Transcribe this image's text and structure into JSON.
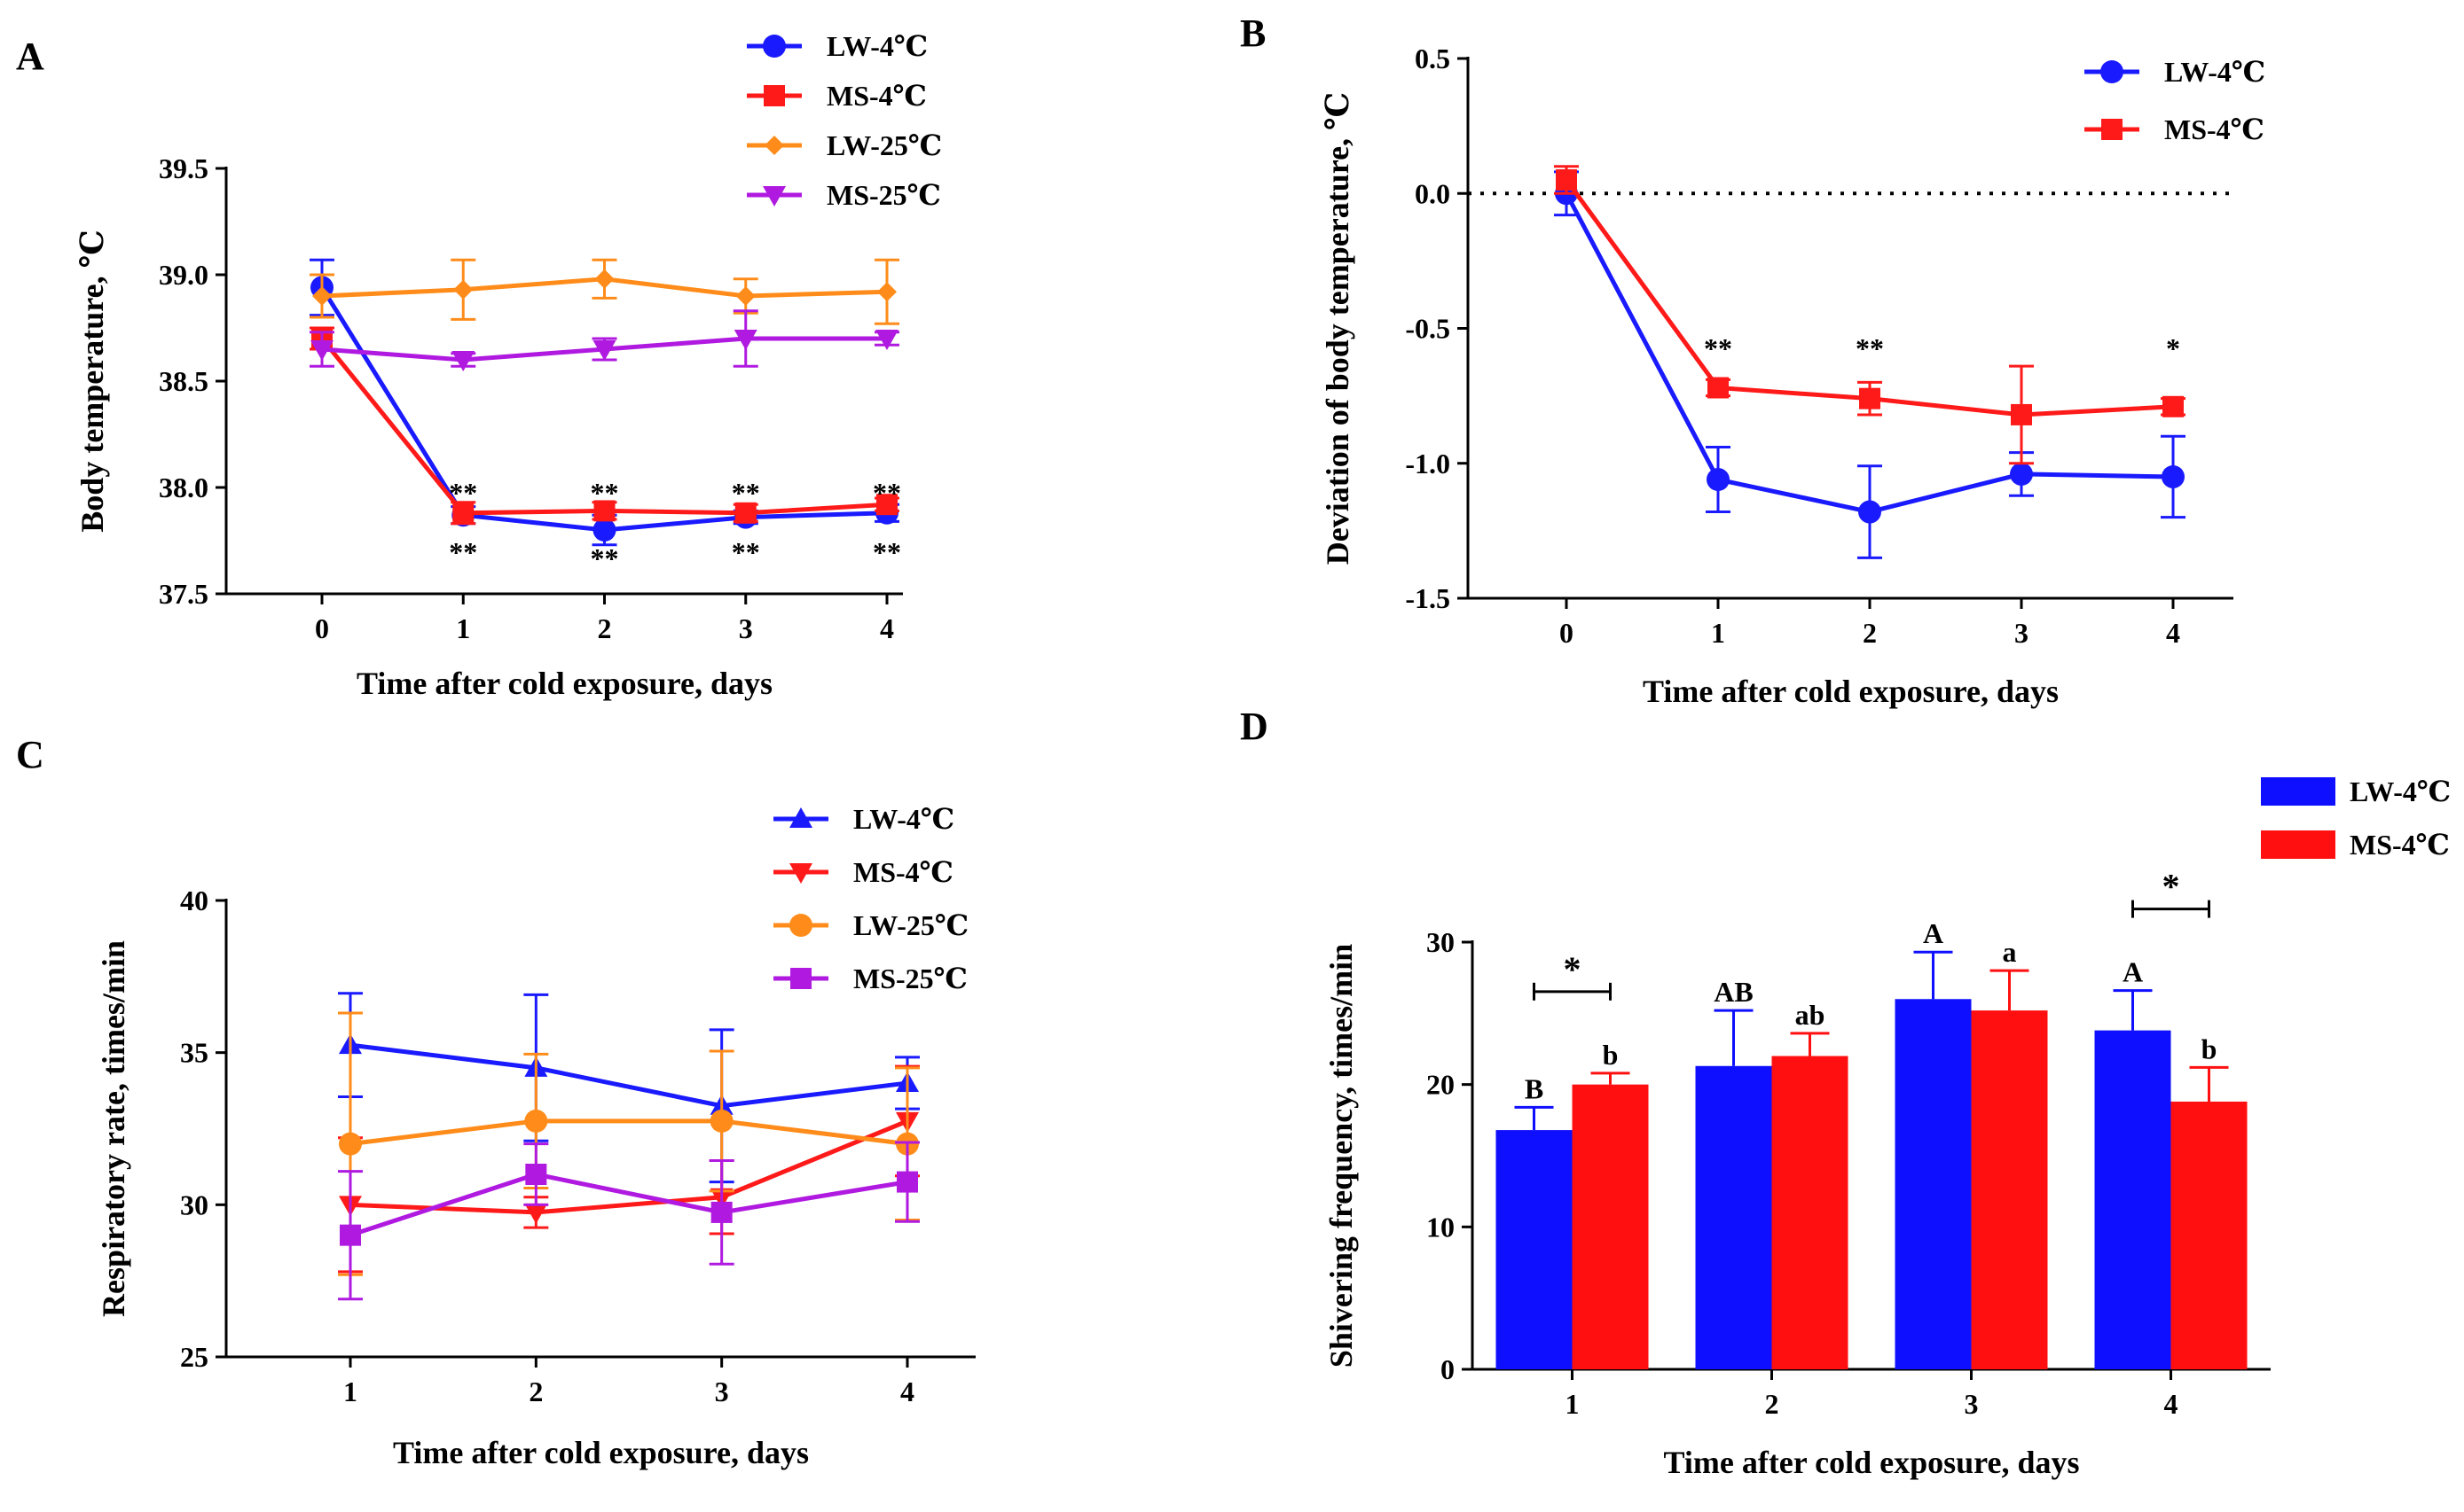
{
  "figure_panels": [
    "A",
    "B",
    "C",
    "D"
  ],
  "chart_data": [
    {
      "panel": "A",
      "type": "line",
      "xlabel": "Time after cold exposure, days",
      "ylabel": "Body temperature, ℃",
      "x": [
        0,
        1,
        2,
        3,
        4
      ],
      "xticks": [
        "0",
        "1",
        "2",
        "3",
        "4"
      ],
      "ylim": [
        37.5,
        39.5
      ],
      "yticks": [
        "37.5",
        "38.0",
        "38.5",
        "39.0",
        "39.5"
      ],
      "legend_position": "top-right",
      "series": [
        {
          "name": "LW-4℃",
          "color": "#1a1aff",
          "marker": "circle",
          "values": [
            38.94,
            37.87,
            37.8,
            37.86,
            37.88
          ],
          "errors": [
            0.13,
            0.04,
            0.07,
            0.03,
            0.04
          ]
        },
        {
          "name": "MS-4℃",
          "color": "#ff1a1a",
          "marker": "square",
          "values": [
            38.7,
            37.88,
            37.89,
            37.88,
            37.92
          ],
          "errors": [
            0.05,
            0.05,
            0.04,
            0.04,
            0.03
          ]
        },
        {
          "name": "LW-25℃",
          "color": "#ff8c1a",
          "marker": "diamond",
          "values": [
            38.9,
            38.93,
            38.98,
            38.9,
            38.92
          ],
          "errors": [
            0.1,
            0.14,
            0.09,
            0.08,
            0.15
          ]
        },
        {
          "name": "MS-25℃",
          "color": "#b01ae0",
          "marker": "triangle-down",
          "values": [
            38.65,
            38.6,
            38.65,
            38.7,
            38.7
          ],
          "errors": [
            0.08,
            0.03,
            0.05,
            0.13,
            0.03
          ]
        }
      ],
      "annotations": [
        {
          "x": 1,
          "y": 37.98,
          "text": "**"
        },
        {
          "x": 2,
          "y": 37.98,
          "text": "**"
        },
        {
          "x": 3,
          "y": 37.98,
          "text": "**"
        },
        {
          "x": 4,
          "y": 37.98,
          "text": "**"
        },
        {
          "x": 1,
          "y": 37.7,
          "text": "**"
        },
        {
          "x": 2,
          "y": 37.67,
          "text": "**"
        },
        {
          "x": 3,
          "y": 37.7,
          "text": "**"
        },
        {
          "x": 4,
          "y": 37.7,
          "text": "**"
        }
      ]
    },
    {
      "panel": "B",
      "type": "line",
      "xlabel": "Time after cold exposure, days",
      "ylabel": "Deviation of body temperature, ℃",
      "x": [
        0,
        1,
        2,
        3,
        4
      ],
      "xticks": [
        "0",
        "1",
        "2",
        "3",
        "4"
      ],
      "ylim": [
        -1.5,
        0.5
      ],
      "yticks": [
        "-1.5",
        "-1.0",
        "-0.5",
        "0.0",
        "0.5"
      ],
      "reference_line_y": 0,
      "legend_position": "top-right",
      "series": [
        {
          "name": "LW-4℃",
          "color": "#1a1aff",
          "marker": "circle",
          "values": [
            0.0,
            -1.06,
            -1.18,
            -1.04,
            -1.05
          ],
          "errors": [
            0.08,
            0.12,
            0.17,
            0.08,
            0.15
          ]
        },
        {
          "name": "MS-4℃",
          "color": "#ff1a1a",
          "marker": "square",
          "values": [
            0.05,
            -0.72,
            -0.76,
            -0.82,
            -0.79
          ],
          "errors": [
            0.05,
            0.03,
            0.06,
            0.18,
            0.03
          ]
        }
      ],
      "annotations": [
        {
          "x": 1,
          "y": -0.57,
          "text": "**"
        },
        {
          "x": 2,
          "y": -0.57,
          "text": "**"
        },
        {
          "x": 4,
          "y": -0.57,
          "text": "*"
        }
      ]
    },
    {
      "panel": "C",
      "type": "line",
      "xlabel": "Time after cold exposure, days",
      "ylabel": "Respiratory rate, times/min",
      "x": [
        1,
        2,
        3,
        4
      ],
      "xticks": [
        "1",
        "2",
        "3",
        "4"
      ],
      "ylim": [
        25,
        40
      ],
      "yticks": [
        "25",
        "30",
        "35",
        "40"
      ],
      "legend_position": "top-right",
      "series": [
        {
          "name": "LW-4℃",
          "color": "#1a1aff",
          "marker": "triangle-up",
          "values": [
            35.25,
            34.5,
            33.25,
            34.0
          ],
          "errors": [
            1.7,
            2.4,
            2.5,
            0.85
          ]
        },
        {
          "name": "MS-4℃",
          "color": "#ff1a1a",
          "marker": "triangle-down",
          "values": [
            30.0,
            29.75,
            30.25,
            32.75
          ],
          "errors": [
            2.2,
            0.5,
            1.2,
            1.8
          ]
        },
        {
          "name": "LW-25℃",
          "color": "#ff8c1a",
          "marker": "circle",
          "values": [
            32.0,
            32.75,
            32.75,
            32.0
          ],
          "errors": [
            4.3,
            2.2,
            2.3,
            2.5
          ]
        },
        {
          "name": "MS-25℃",
          "color": "#b01ae0",
          "marker": "square",
          "values": [
            29.0,
            31.0,
            29.75,
            30.75
          ],
          "errors": [
            2.1,
            1.0,
            1.7,
            1.3
          ]
        }
      ]
    },
    {
      "panel": "D",
      "type": "bar",
      "xlabel": "Time after cold exposure, days",
      "ylabel": "Shivering frequency, times/min",
      "categories": [
        "1",
        "2",
        "3",
        "4"
      ],
      "ylim": [
        0,
        30
      ],
      "yticks": [
        "0",
        "10",
        "20",
        "30"
      ],
      "legend_position": "top-right",
      "series": [
        {
          "name": "LW-4℃",
          "color": "#0f0fff",
          "values": [
            16.8,
            21.3,
            26.0,
            23.8
          ],
          "errors": [
            1.6,
            3.9,
            3.3,
            2.8
          ],
          "letters": [
            "B",
            "AB",
            "A",
            "A"
          ]
        },
        {
          "name": "MS-4℃",
          "color": "#ff0f0f",
          "values": [
            20.0,
            22.0,
            25.2,
            18.8
          ],
          "errors": [
            0.8,
            1.6,
            2.8,
            2.4
          ],
          "letters": [
            "b",
            "ab",
            "a",
            "b"
          ]
        }
      ],
      "significance": [
        {
          "category": "1",
          "text": "*"
        },
        {
          "category": "4",
          "text": "*"
        }
      ]
    }
  ]
}
